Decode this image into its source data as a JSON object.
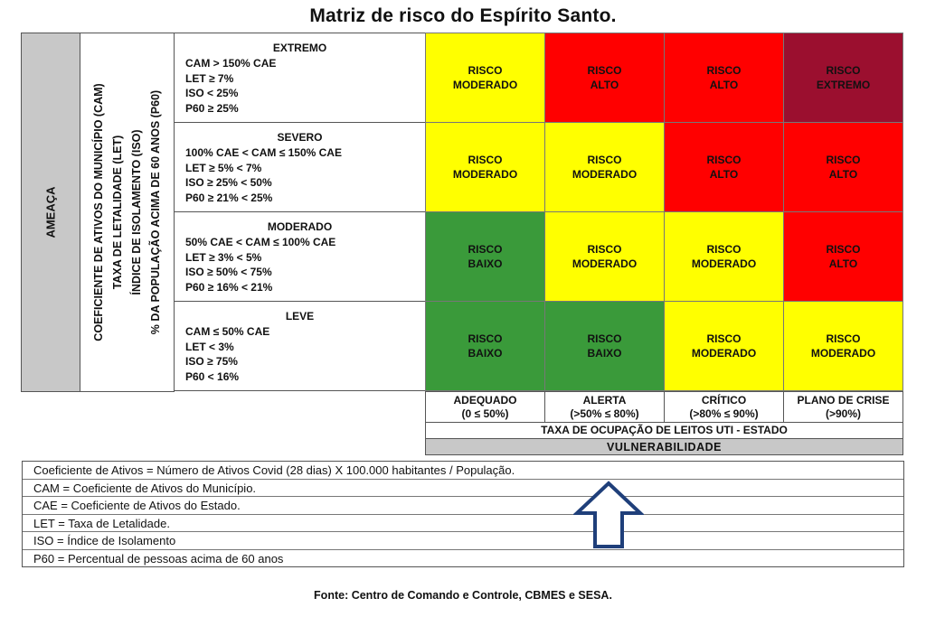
{
  "title": "Matriz de risco do Espírito Santo.",
  "axis": {
    "ameaca": "AMEAÇA",
    "indicators": [
      "COEFICIENTE DE ATIVOS DO MUNICÍPIO  (CAM)",
      "TAXA DE LETALIDADE (LET)",
      "ÍNDICE DE ISOLAMENTO (ISO)",
      "% DA POPULAÇÃO ACIMA DE 60 ANOS (P60)"
    ]
  },
  "threats": [
    {
      "name": "EXTREMO",
      "criteria": [
        "CAM > 150% CAE",
        "LET ≥  7%",
        "ISO < 25%",
        "P60 ≥  25%"
      ]
    },
    {
      "name": "SEVERO",
      "criteria": [
        "100% CAE < CAM ≤ 150% CAE",
        "LET ≥  5% < 7%",
        "ISO ≥  25% < 50%",
        "P60  ≥ 21% < 25%"
      ]
    },
    {
      "name": "MODERADO",
      "criteria": [
        "50% CAE < CAM ≤ 100% CAE",
        "LET ≥  3% < 5%",
        "ISO ≥  50% < 75%",
        "P60 ≥  16% < 21%"
      ]
    },
    {
      "name": "LEVE",
      "criteria": [
        "CAM ≤ 50% CAE",
        "LET < 3%",
        "ISO ≥  75%",
        "P60 < 16%"
      ]
    }
  ],
  "colors": {
    "baixo": "#3a9a3a",
    "moderado": "#ffff00",
    "alto": "#ff0000",
    "extremo": "#9b0f2f",
    "arrow": "#1f3f7a"
  },
  "matrix": [
    [
      {
        "line1": "RISCO",
        "line2": "MODERADO",
        "level": "moderado"
      },
      {
        "line1": "RISCO",
        "line2": "ALTO",
        "level": "alto"
      },
      {
        "line1": "RISCO",
        "line2": "ALTO",
        "level": "alto"
      },
      {
        "line1": "RISCO",
        "line2": "EXTREMO",
        "level": "extremo"
      }
    ],
    [
      {
        "line1": "RISCO",
        "line2": "MODERADO",
        "level": "moderado"
      },
      {
        "line1": "RISCO",
        "line2": "MODERADO",
        "level": "moderado"
      },
      {
        "line1": "RISCO",
        "line2": "ALTO",
        "level": "alto"
      },
      {
        "line1": "RISCO",
        "line2": "ALTO",
        "level": "alto"
      }
    ],
    [
      {
        "line1": "RISCO",
        "line2": "BAIXO",
        "level": "baixo"
      },
      {
        "line1": "RISCO",
        "line2": "MODERADO",
        "level": "moderado"
      },
      {
        "line1": "RISCO",
        "line2": "MODERADO",
        "level": "moderado"
      },
      {
        "line1": "RISCO",
        "line2": "ALTO",
        "level": "alto"
      }
    ],
    [
      {
        "line1": "RISCO",
        "line2": "BAIXO",
        "level": "baixo"
      },
      {
        "line1": "RISCO",
        "line2": "BAIXO",
        "level": "baixo"
      },
      {
        "line1": "RISCO",
        "line2": "MODERADO",
        "level": "moderado"
      },
      {
        "line1": "RISCO",
        "line2": "MODERADO",
        "level": "moderado"
      }
    ]
  ],
  "occupancy": [
    {
      "label": "ADEQUADO",
      "range": "(0 ≤ 50%)"
    },
    {
      "label": "ALERTA",
      "range": "(>50% ≤ 80%)"
    },
    {
      "label": "CRÍTICO",
      "range": "(>80% ≤ 90%)"
    },
    {
      "label": "PLANO DE CRISE",
      "range": "(>90%)"
    }
  ],
  "occupancy_axis": "TAXA DE OCUPAÇÃO DE LEITOS UTI - ESTADO",
  "vulnerability": "VULNERABILIDADE",
  "legend": [
    "Coeficiente de Ativos = Número de Ativos Covid (28 dias) X 100.000 habitantes / População.",
    "CAM = Coeficiente de Ativos do Município.",
    "CAE = Coeficiente de Ativos do Estado.",
    "LET = Taxa de Letalidade.",
    "ISO = Índice de Isolamento",
    "P60 = Percentual de pessoas acima de 60 anos"
  ],
  "source": "Fonte: Centro de Comando e Controle, CBMES e SESA."
}
